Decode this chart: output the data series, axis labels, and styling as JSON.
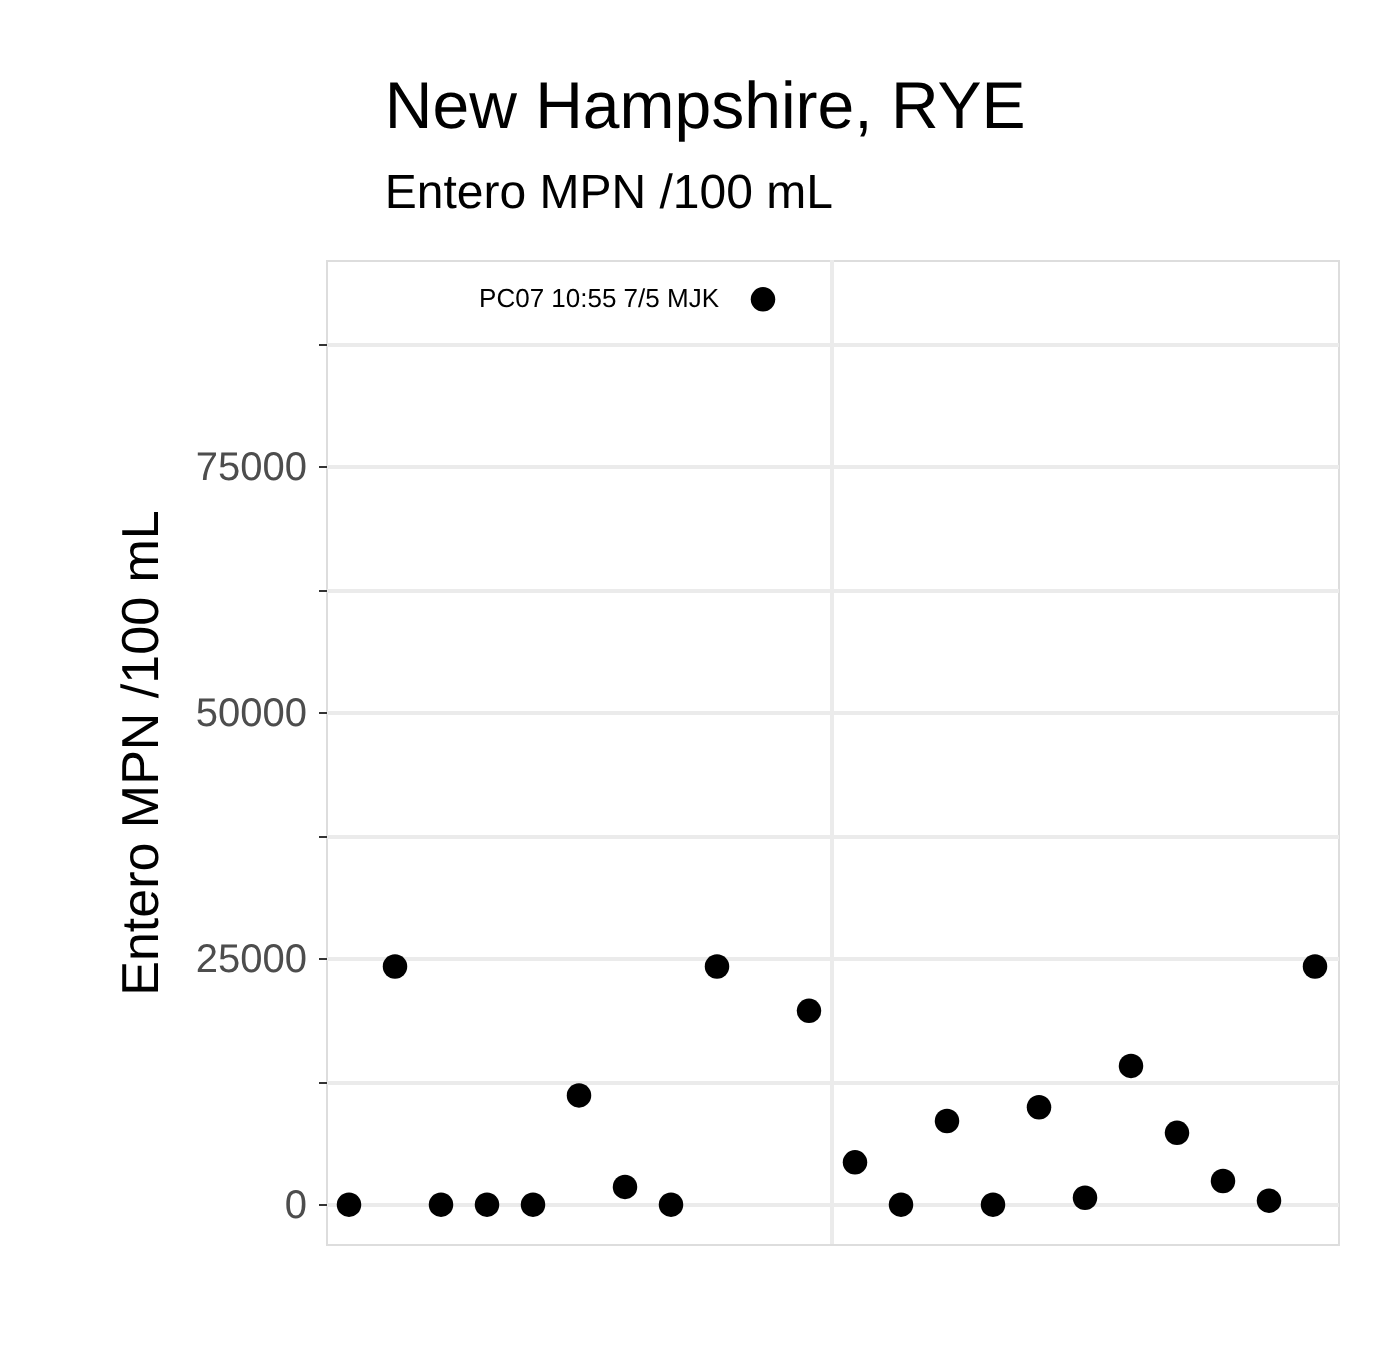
{
  "chart_data": {
    "type": "scatter",
    "title": "New Hampshire, RYE",
    "subtitle": "Entero MPN /100 mL",
    "ylabel": "Entero MPN /100 mL",
    "categories": [
      null,
      null,
      null,
      null,
      null,
      null,
      null,
      null,
      null,
      null,
      null,
      null,
      null,
      null,
      null,
      null,
      null,
      null,
      null,
      null,
      null,
      null
    ],
    "series": [
      {
        "color": "#000000",
        "values": [
          0,
          24200,
          0,
          0,
          0,
          11100,
          1800,
          0,
          24200,
          92000,
          19700,
          4300,
          0,
          8500,
          0,
          9900,
          700,
          14100,
          7300,
          2400,
          400,
          24200
        ]
      }
    ],
    "ylim": [
      -4000,
      96000
    ],
    "yticks": [
      0,
      {
        "value": 12500,
        "label": null
      },
      25000,
      {
        "value": 37500,
        "label": null
      },
      50000,
      {
        "value": 62500,
        "label": null
      },
      75000,
      {
        "value": 87500,
        "label": null
      }
    ],
    "annotations": [
      "PC07 10:55 7/5 MJK"
    ],
    "tick_labels": "y",
    "grid": true,
    "marker": "circle"
  }
}
